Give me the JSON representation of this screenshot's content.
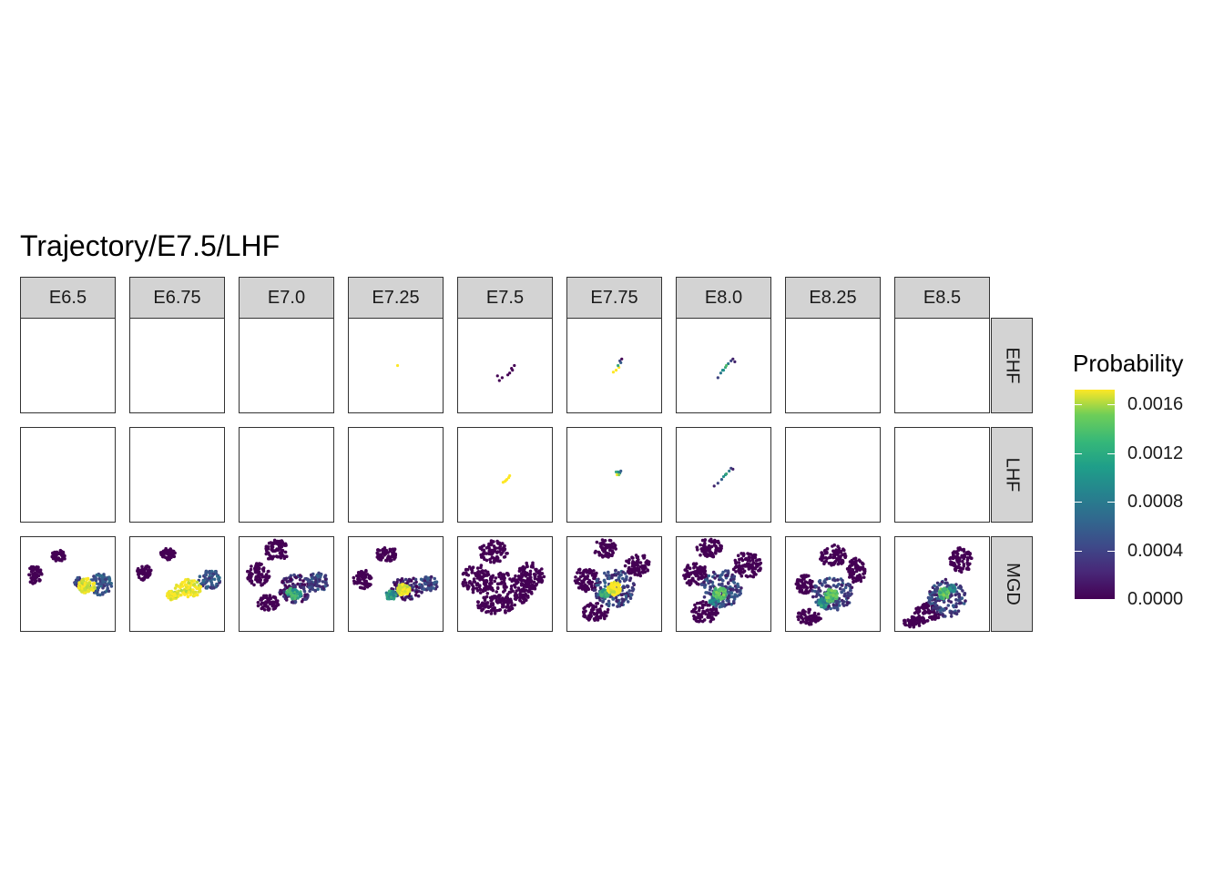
{
  "title": "Trajectory/E7.5/LHF",
  "chart_data": {
    "type": "scatter",
    "title": "Trajectory/E7.5/LHF",
    "facet_columns": [
      "E6.5",
      "E6.75",
      "E7.0",
      "E7.25",
      "E7.5",
      "E7.75",
      "E8.0",
      "E8.25",
      "E8.5"
    ],
    "facet_rows": [
      "EHF",
      "LHF",
      "MGD"
    ],
    "legend": {
      "title": "Probability",
      "min": 0,
      "max": 0.00172,
      "ticks": [
        "0.0000",
        "0.0004",
        "0.0008",
        "0.0012",
        "0.0016"
      ],
      "tick_values": [
        0.0,
        0.0004,
        0.0008,
        0.0012,
        0.0016
      ],
      "colormap": "viridis",
      "placement": "right"
    },
    "colors": [
      "#440154",
      "#3b528b",
      "#21908c",
      "#5dc863",
      "#fde725"
    ],
    "panels": {
      "EHF": [
        null,
        null,
        null,
        {
          "points": [
            [
              0.52,
              0.5,
              1.0
            ]
          ]
        },
        {
          "points": [
            [
              0.55,
              0.58,
              0.0
            ],
            [
              0.58,
              0.55,
              0.0
            ],
            [
              0.53,
              0.6,
              0.0
            ],
            [
              0.6,
              0.5,
              0.0
            ],
            [
              0.47,
              0.63,
              0.0
            ],
            [
              0.42,
              0.61,
              0.0
            ],
            [
              0.44,
              0.66,
              0.0
            ],
            [
              0.57,
              0.53,
              0.0
            ]
          ]
        },
        {
          "points": [
            [
              0.52,
              0.55,
              1.0
            ],
            [
              0.55,
              0.52,
              1.0
            ],
            [
              0.54,
              0.5,
              0.6
            ],
            [
              0.57,
              0.47,
              0.3
            ],
            [
              0.58,
              0.43,
              0.0
            ],
            [
              0.49,
              0.57,
              1.0
            ],
            [
              0.56,
              0.45,
              0.2
            ]
          ]
        },
        {
          "points": [
            [
              0.49,
              0.55,
              0.5
            ],
            [
              0.52,
              0.52,
              0.6
            ],
            [
              0.55,
              0.48,
              0.4
            ],
            [
              0.58,
              0.45,
              0.2
            ],
            [
              0.6,
              0.43,
              0.1
            ],
            [
              0.47,
              0.58,
              0.4
            ],
            [
              0.44,
              0.63,
              0.2
            ],
            [
              0.53,
              0.5,
              0.7
            ],
            [
              0.62,
              0.46,
              0.1
            ],
            [
              0.5,
              0.55,
              0.5
            ]
          ]
        },
        null,
        null
      ],
      "LHF": [
        null,
        null,
        null,
        null,
        {
          "points": [
            [
              0.52,
              0.55,
              1.0
            ],
            [
              0.54,
              0.53,
              1.0
            ],
            [
              0.5,
              0.57,
              1.0
            ],
            [
              0.55,
              0.51,
              1.0
            ],
            [
              0.51,
              0.56,
              1.0
            ],
            [
              0.48,
              0.58,
              1.0
            ]
          ]
        },
        {
          "points": [
            [
              0.54,
              0.47,
              0.5
            ],
            [
              0.56,
              0.48,
              0.4
            ],
            [
              0.53,
              0.5,
              1.0
            ],
            [
              0.55,
              0.5,
              0.8
            ],
            [
              0.52,
              0.47,
              0.6
            ],
            [
              0.57,
              0.46,
              0.3
            ]
          ]
        },
        {
          "points": [
            [
              0.52,
              0.5,
              0.5
            ],
            [
              0.56,
              0.46,
              0.4
            ],
            [
              0.48,
              0.55,
              0.3
            ],
            [
              0.44,
              0.59,
              0.2
            ],
            [
              0.4,
              0.62,
              0.1
            ],
            [
              0.58,
              0.43,
              0.2
            ],
            [
              0.53,
              0.49,
              0.6
            ],
            [
              0.5,
              0.52,
              0.5
            ],
            [
              0.6,
              0.44,
              0.1
            ]
          ]
        },
        null,
        null
      ],
      "MGD": [
        {
          "blobs": [
            [
              0.4,
              0.2,
              0.08,
              0.06,
              0.0
            ],
            [
              0.15,
              0.4,
              0.08,
              0.1,
              0.0
            ],
            [
              0.85,
              0.5,
              0.12,
              0.12,
              0.25
            ],
            [
              0.7,
              0.52,
              0.1,
              0.08,
              1.0
            ],
            [
              0.62,
              0.48,
              0.05,
              0.05,
              0.2
            ]
          ]
        },
        {
          "blobs": [
            [
              0.4,
              0.18,
              0.08,
              0.06,
              0.0
            ],
            [
              0.15,
              0.38,
              0.08,
              0.08,
              0.0
            ],
            [
              0.85,
              0.45,
              0.12,
              0.1,
              0.25
            ],
            [
              0.62,
              0.55,
              0.14,
              0.1,
              1.0
            ],
            [
              0.45,
              0.62,
              0.06,
              0.05,
              1.0
            ]
          ]
        },
        {
          "blobs": [
            [
              0.4,
              0.15,
              0.13,
              0.12,
              0.0
            ],
            [
              0.2,
              0.4,
              0.12,
              0.12,
              0.0
            ],
            [
              0.6,
              0.55,
              0.18,
              0.15,
              0.1
            ],
            [
              0.84,
              0.48,
              0.12,
              0.1,
              0.2
            ],
            [
              0.58,
              0.6,
              0.08,
              0.06,
              0.6
            ],
            [
              0.3,
              0.7,
              0.12,
              0.08,
              0.0
            ]
          ]
        },
        {
          "blobs": [
            [
              0.4,
              0.18,
              0.12,
              0.08,
              0.0
            ],
            [
              0.15,
              0.45,
              0.1,
              0.1,
              0.0
            ],
            [
              0.62,
              0.55,
              0.18,
              0.12,
              0.1
            ],
            [
              0.85,
              0.5,
              0.1,
              0.08,
              0.2
            ],
            [
              0.58,
              0.56,
              0.07,
              0.06,
              1.0
            ],
            [
              0.45,
              0.62,
              0.06,
              0.05,
              0.5
            ]
          ]
        },
        {
          "blobs": [
            [
              0.38,
              0.15,
              0.16,
              0.12,
              0.0
            ],
            [
              0.2,
              0.45,
              0.16,
              0.16,
              0.0
            ],
            [
              0.55,
              0.55,
              0.28,
              0.18,
              0.0
            ],
            [
              0.78,
              0.4,
              0.14,
              0.14,
              0.0
            ],
            [
              0.4,
              0.72,
              0.2,
              0.1,
              0.0
            ]
          ]
        },
        {
          "blobs": [
            [
              0.4,
              0.12,
              0.12,
              0.1,
              0.0
            ],
            [
              0.2,
              0.45,
              0.13,
              0.13,
              0.0
            ],
            [
              0.5,
              0.55,
              0.22,
              0.2,
              0.2
            ],
            [
              0.75,
              0.3,
              0.14,
              0.12,
              0.0
            ],
            [
              0.3,
              0.8,
              0.14,
              0.1,
              0.0
            ],
            [
              0.5,
              0.55,
              0.07,
              0.07,
              1.0
            ],
            [
              0.4,
              0.6,
              0.05,
              0.04,
              0.6
            ]
          ]
        },
        {
          "blobs": [
            [
              0.35,
              0.12,
              0.14,
              0.1,
              0.0
            ],
            [
              0.2,
              0.4,
              0.13,
              0.13,
              0.0
            ],
            [
              0.48,
              0.55,
              0.22,
              0.2,
              0.2
            ],
            [
              0.75,
              0.3,
              0.15,
              0.14,
              0.0
            ],
            [
              0.3,
              0.8,
              0.14,
              0.12,
              0.0
            ],
            [
              0.46,
              0.6,
              0.07,
              0.07,
              0.7
            ],
            [
              0.4,
              0.68,
              0.05,
              0.05,
              0.4
            ]
          ]
        },
        {
          "blobs": [
            [
              0.5,
              0.2,
              0.14,
              0.12,
              0.0
            ],
            [
              0.2,
              0.5,
              0.1,
              0.1,
              0.0
            ],
            [
              0.5,
              0.6,
              0.22,
              0.18,
              0.2
            ],
            [
              0.75,
              0.35,
              0.1,
              0.14,
              0.0
            ],
            [
              0.25,
              0.85,
              0.14,
              0.08,
              0.0
            ],
            [
              0.48,
              0.62,
              0.07,
              0.07,
              0.7
            ],
            [
              0.4,
              0.7,
              0.05,
              0.05,
              0.5
            ]
          ]
        },
        {
          "blobs": [
            [
              0.7,
              0.25,
              0.12,
              0.14,
              0.0
            ],
            [
              0.2,
              0.9,
              0.12,
              0.06,
              0.0
            ],
            [
              0.55,
              0.65,
              0.2,
              0.2,
              0.2
            ],
            [
              0.35,
              0.8,
              0.15,
              0.1,
              0.0
            ],
            [
              0.52,
              0.6,
              0.05,
              0.06,
              0.7
            ],
            [
              0.6,
              0.55,
              0.04,
              0.04,
              0.5
            ]
          ]
        }
      ]
    }
  }
}
